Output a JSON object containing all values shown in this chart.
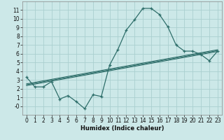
{
  "xlabel": "Humidex (Indice chaleur)",
  "ylabel": "",
  "bg_color": "#cce8e8",
  "grid_color": "#aacfcf",
  "line_color": "#2e6e6a",
  "x_main": [
    0,
    1,
    2,
    3,
    4,
    5,
    6,
    7,
    8,
    9,
    10,
    11,
    12,
    13,
    14,
    15,
    16,
    17,
    18,
    19,
    20,
    21,
    22,
    23
  ],
  "y_main": [
    3.3,
    2.2,
    2.2,
    2.8,
    0.8,
    1.2,
    0.5,
    -0.3,
    1.3,
    1.1,
    4.7,
    6.5,
    8.7,
    9.9,
    11.2,
    11.2,
    10.5,
    9.1,
    7.0,
    6.3,
    6.3,
    5.9,
    5.2,
    6.3
  ],
  "y_line1": [
    2.55,
    2.72,
    2.89,
    3.06,
    3.23,
    3.4,
    3.57,
    3.74,
    3.91,
    4.08,
    4.25,
    4.42,
    4.59,
    4.76,
    4.93,
    5.1,
    5.27,
    5.44,
    5.61,
    5.78,
    5.95,
    6.12,
    6.29,
    6.46
  ],
  "y_line2": [
    2.45,
    2.62,
    2.79,
    2.96,
    3.13,
    3.3,
    3.47,
    3.64,
    3.81,
    3.98,
    4.15,
    4.32,
    4.49,
    4.66,
    4.83,
    5.0,
    5.17,
    5.34,
    5.51,
    5.68,
    5.85,
    6.02,
    6.19,
    6.36
  ],
  "y_line3": [
    2.35,
    2.52,
    2.69,
    2.86,
    3.03,
    3.2,
    3.37,
    3.54,
    3.71,
    3.88,
    4.05,
    4.22,
    4.39,
    4.56,
    4.73,
    4.9,
    5.07,
    5.24,
    5.41,
    5.58,
    5.75,
    5.92,
    6.09,
    6.26
  ],
  "xlim": [
    -0.5,
    23.5
  ],
  "ylim": [
    -1.0,
    12.0
  ],
  "yticks": [
    0,
    1,
    2,
    3,
    4,
    5,
    6,
    7,
    8,
    9,
    10,
    11
  ],
  "ytick_labels": [
    "-0",
    "1",
    "2",
    "3",
    "4",
    "5",
    "6",
    "7",
    "8",
    "9",
    "10",
    "11"
  ],
  "xticks": [
    0,
    1,
    2,
    3,
    4,
    5,
    6,
    7,
    8,
    9,
    10,
    11,
    12,
    13,
    14,
    15,
    16,
    17,
    18,
    19,
    20,
    21,
    22,
    23
  ],
  "xlabel_fontsize": 6.0,
  "tick_fontsize": 5.5
}
